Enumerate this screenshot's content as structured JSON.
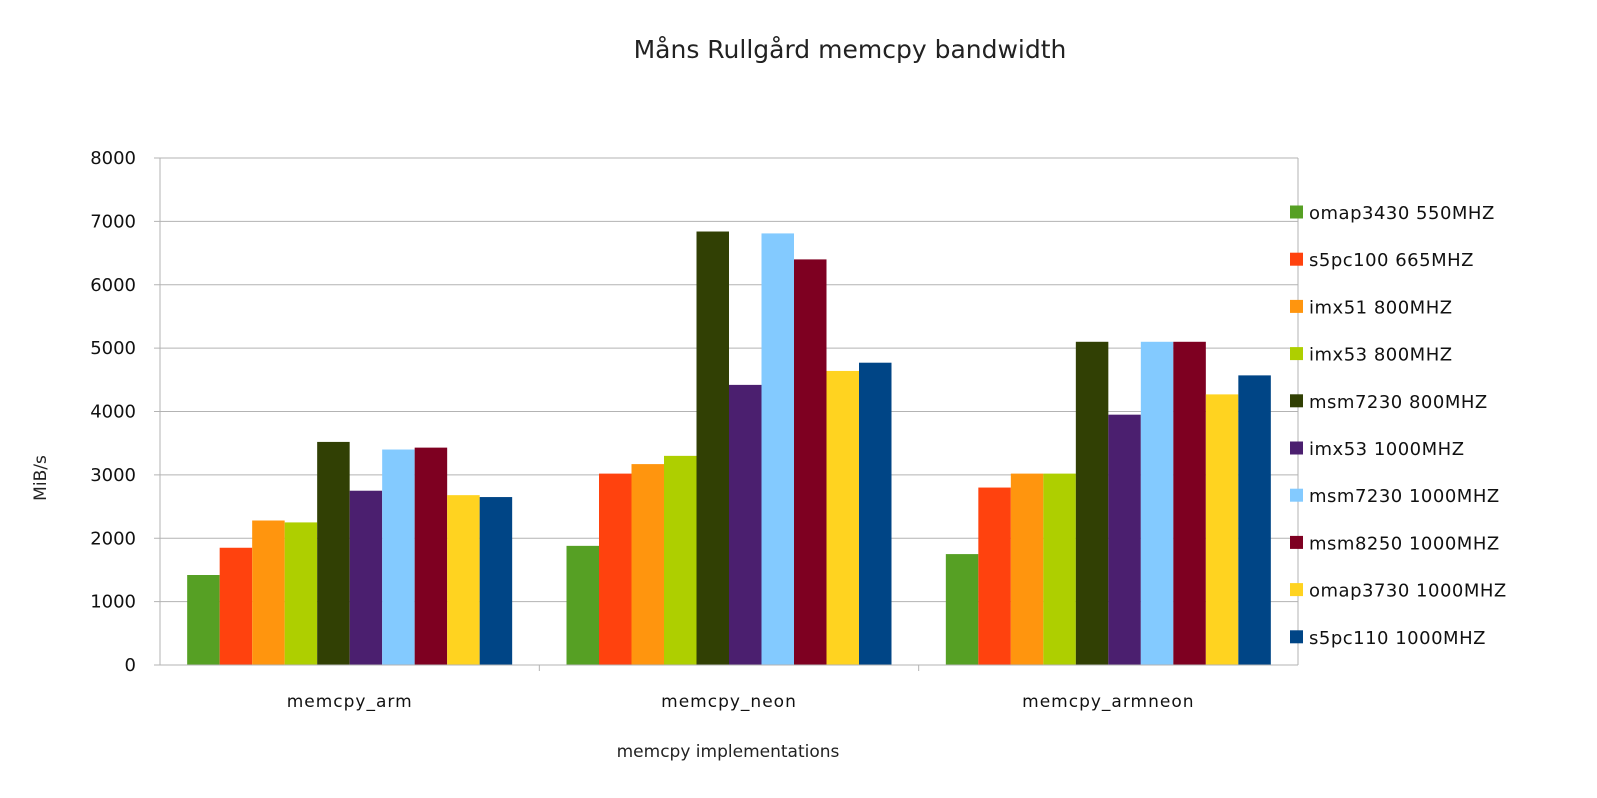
{
  "chart_data": {
    "type": "bar",
    "title": "Måns Rullgård memcpy bandwidth",
    "xlabel": "memcpy implementations",
    "ylabel": "MiB/s",
    "ylim": [
      0,
      8000
    ],
    "yticks": [
      0,
      1000,
      2000,
      3000,
      4000,
      5000,
      6000,
      7000,
      8000
    ],
    "grid": true,
    "legend_position": "right",
    "categories": [
      "memcpy_arm",
      "memcpy_neon",
      "memcpy_armneon"
    ],
    "series": [
      {
        "name": "omap3430 550MHZ",
        "color": "#56a024",
        "values": [
          1420,
          1880,
          1750
        ]
      },
      {
        "name": "s5pc100 665MHZ",
        "color": "#ff420e",
        "values": [
          1850,
          3020,
          2800
        ]
      },
      {
        "name": "imx51 800MHZ",
        "color": "#ff950e",
        "values": [
          2280,
          3170,
          3020
        ]
      },
      {
        "name": "imx53 800MHZ",
        "color": "#aecf00",
        "values": [
          2250,
          3300,
          3020
        ]
      },
      {
        "name": "msm7230 800MHZ",
        "color": "#314004",
        "values": [
          3520,
          6840,
          5100
        ]
      },
      {
        "name": "imx53 1000MHZ",
        "color": "#4b1f6f",
        "values": [
          2750,
          4420,
          3950
        ]
      },
      {
        "name": "msm7230 1000MHZ",
        "color": "#83caff",
        "values": [
          3400,
          6810,
          5100
        ]
      },
      {
        "name": "msm8250 1000MHZ",
        "color": "#7e0021",
        "values": [
          3430,
          6400,
          5100
        ]
      },
      {
        "name": "omap3730 1000MHZ",
        "color": "#ffd320",
        "values": [
          2680,
          4640,
          4270
        ]
      },
      {
        "name": "s5pc110 1000MHZ",
        "color": "#004586",
        "values": [
          2650,
          4770,
          4570
        ]
      }
    ]
  }
}
